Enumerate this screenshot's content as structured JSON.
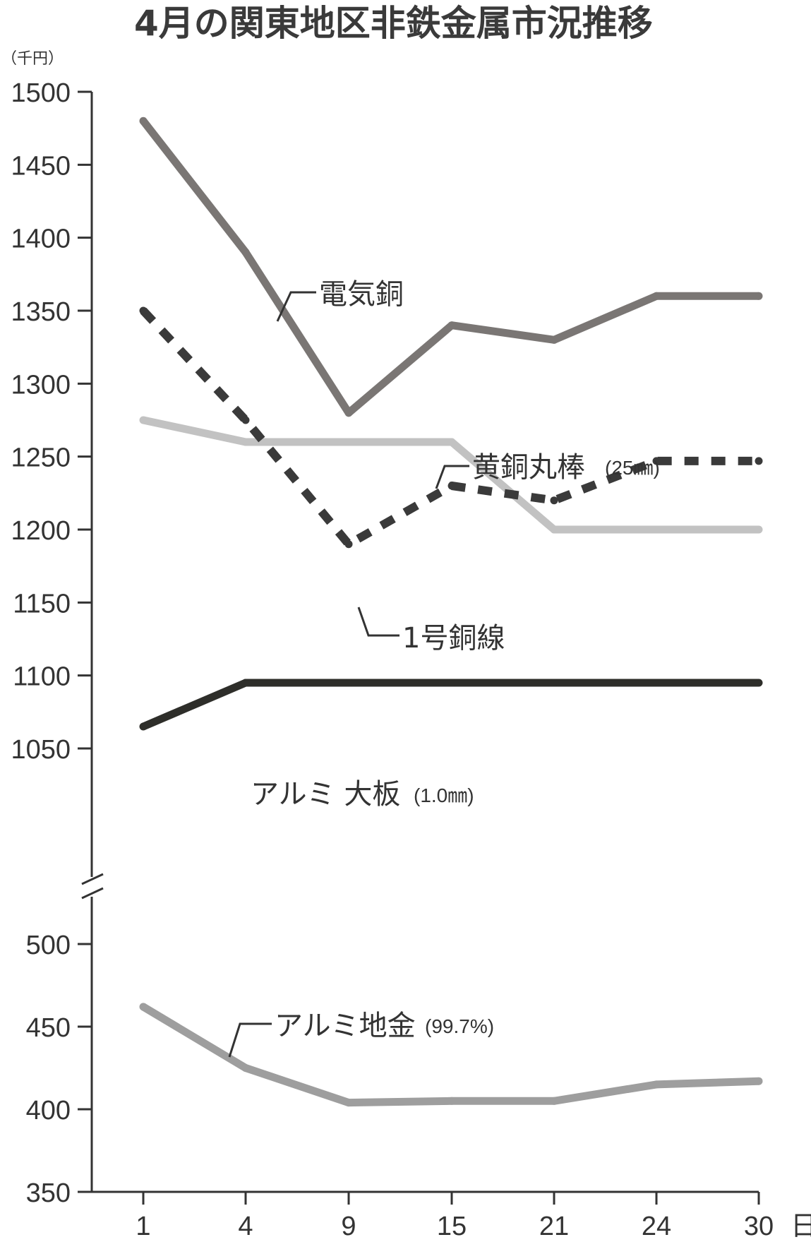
{
  "chart_data": {
    "type": "line",
    "title": "4月の関東地区非鉄金属市況推移",
    "y_unit": "（千円）",
    "x_unit": "日",
    "categories": [
      "1",
      "4",
      "9",
      "15",
      "21",
      "24",
      "30"
    ],
    "y_ticks_upper": [
      "1500",
      "1450",
      "1400",
      "1350",
      "1300",
      "1250",
      "1200",
      "1150",
      "1100",
      "1050"
    ],
    "y_ticks_lower": [
      "500",
      "450",
      "400",
      "350"
    ],
    "ylim_upper": [
      1030,
      1500
    ],
    "ylim_lower": [
      350,
      500
    ],
    "axis_break": true,
    "grid": false,
    "series": [
      {
        "name": "電気銅",
        "values": [
          1480,
          1390,
          1280,
          1340,
          1330,
          1360,
          1360
        ],
        "color": "#7a7674",
        "style": "solid",
        "panel": "upper"
      },
      {
        "name": "黄銅丸棒",
        "unit_note": "(25㎜)",
        "values": [
          1275,
          1260,
          1260,
          1260,
          1200,
          1200,
          1200
        ],
        "color": "#c2c2c2",
        "style": "solid",
        "panel": "upper"
      },
      {
        "name": "1号銅線",
        "values": [
          1350,
          1275,
          1190,
          1230,
          1220,
          1247,
          1247
        ],
        "color": "#3a3a3a",
        "style": "dashed",
        "panel": "upper"
      },
      {
        "name": "アルミ 大板",
        "unit_note": "(1.0㎜)",
        "values": [
          1065,
          1095,
          1095,
          1095,
          1095,
          1095,
          1095
        ],
        "color": "#2e2e2a",
        "style": "solid",
        "panel": "upper"
      },
      {
        "name": "アルミ地金",
        "unit_note": "(99.7%)",
        "values": [
          462,
          425,
          404,
          405,
          405,
          415,
          417
        ],
        "color": "#9e9e9e",
        "style": "solid",
        "panel": "lower"
      }
    ]
  }
}
